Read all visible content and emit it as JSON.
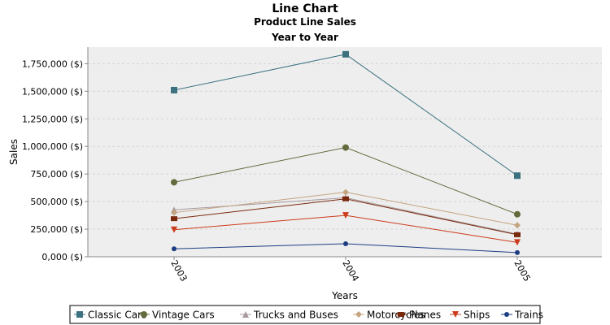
{
  "chart_data": {
    "type": "line",
    "title": "Line Chart",
    "subtitle": [
      "Product Line Sales",
      "Year to Year"
    ],
    "xlabel": "Years",
    "ylabel": "Sales",
    "categories": [
      "2003",
      "2004",
      "2005"
    ],
    "ylim": [
      0,
      1900000
    ],
    "yticks": [
      "0,000 ($)",
      "250,000 ($)",
      "500,000 ($)",
      "750,000 ($)",
      "1,000,000 ($)",
      "1,250,000 ($)",
      "1,500,000 ($)",
      "1,750,000 ($)"
    ],
    "ytick_values": [
      0,
      250000,
      500000,
      750000,
      1000000,
      1250000,
      1500000,
      1750000
    ],
    "grid": true,
    "legend_position": "bottom",
    "series": [
      {
        "name": "Classic Cars",
        "color": "#3c7280",
        "marker": "square",
        "values": [
          1510000,
          1835000,
          735000
        ]
      },
      {
        "name": "Vintage Cars",
        "color": "#646a3c",
        "marker": "circle",
        "values": [
          675000,
          990000,
          385000
        ]
      },
      {
        "name": "Trucks and Buses",
        "color": "#a89a9e",
        "marker": "triangle-up",
        "values": [
          425000,
          535000,
          205000
        ]
      },
      {
        "name": "Motorcycles",
        "color": "#c4a480",
        "marker": "diamond",
        "values": [
          400000,
          585000,
          285000
        ]
      },
      {
        "name": "Planes",
        "color": "#7a2a0c",
        "marker": "rect",
        "values": [
          345000,
          525000,
          200000
        ]
      },
      {
        "name": "Ships",
        "color": "#cc3b1c",
        "marker": "triangle-down",
        "values": [
          245000,
          375000,
          130000
        ]
      },
      {
        "name": "Trains",
        "color": "#1c3d82",
        "marker": "small-circle",
        "values": [
          72000,
          118000,
          38000
        ]
      }
    ]
  }
}
